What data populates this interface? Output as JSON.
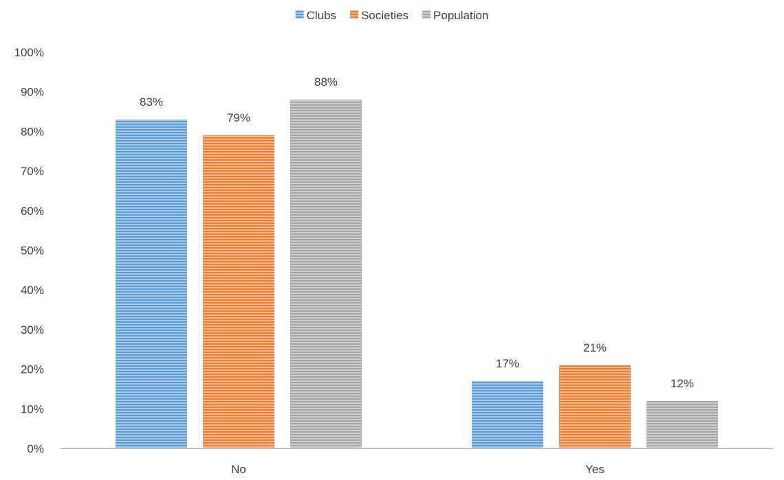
{
  "chart_data": {
    "type": "bar",
    "categories": [
      "No",
      "Yes"
    ],
    "series": [
      {
        "name": "Clubs",
        "values": [
          0.83,
          0.17
        ],
        "labels": [
          "83%",
          "17%"
        ],
        "color": "#5B9BD5"
      },
      {
        "name": "Societies",
        "values": [
          0.79,
          0.21
        ],
        "labels": [
          "79%",
          "21%"
        ],
        "color": "#ED7D31"
      },
      {
        "name": "Population",
        "values": [
          0.88,
          0.12
        ],
        "labels": [
          "88%",
          "12%"
        ],
        "color": "#A5A5A5"
      }
    ],
    "ylim": [
      0,
      1
    ],
    "y_ticks": [
      "0%",
      "10%",
      "20%",
      "30%",
      "40%",
      "50%",
      "60%",
      "70%",
      "80%",
      "90%",
      "100%"
    ],
    "y_tick_values": [
      0,
      0.1,
      0.2,
      0.3,
      0.4,
      0.5,
      0.6,
      0.7,
      0.8,
      0.9,
      1.0
    ],
    "grid": false,
    "legend_position": "top-center",
    "bar_fill": "horizontal-stripes"
  }
}
